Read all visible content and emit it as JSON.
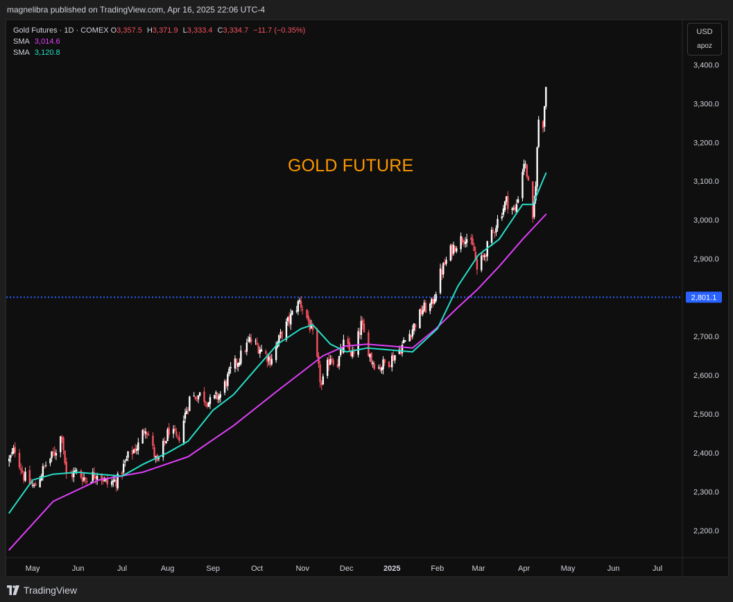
{
  "header": {
    "publisher_line": "magnelibra published on TradingView.com, Apr 16, 2025 22:06 UTC-4"
  },
  "legend": {
    "symbol": "Gold Futures · 1D · COMEX",
    "ohlc": [
      {
        "k": "O",
        "v": "3,357.5"
      },
      {
        "k": "H",
        "v": "3,371.9"
      },
      {
        "k": "L",
        "v": "3,333.4"
      },
      {
        "k": "C",
        "v": "3,334.7"
      }
    ],
    "change": "−11.7 (−0.35%)",
    "sma": [
      {
        "label": "SMA",
        "value": "3,014.6",
        "color": "#e040fb"
      },
      {
        "label": "SMA",
        "value": "3,120.8",
        "color": "#26e0c8"
      }
    ]
  },
  "currency": {
    "code": "USD",
    "unit": "apoz"
  },
  "annotation": "GOLD FUTURE",
  "brand": "TradingView",
  "colors": {
    "up": "#ffffff",
    "down": "#f7525f",
    "sma_long": "#e040fb",
    "sma_short": "#26e0c8",
    "hline": "#2962ff",
    "annotation": "#ff9800"
  },
  "chart_data": {
    "type": "candlestick",
    "y_ticks": [
      "2,200.0",
      "2,300.0",
      "2,400.0",
      "2,500.0",
      "2,600.0",
      "2,700.0",
      "2,800.0",
      "2,900.0",
      "3,000.0",
      "3,100.0",
      "3,200.0",
      "3,300.0",
      "3,400.0"
    ],
    "ylim": [
      2130,
      3515
    ],
    "x_ticks": [
      "May",
      "Jun",
      "Jul",
      "Aug",
      "Sep",
      "Oct",
      "Nov",
      "Dec",
      "2025",
      "Feb",
      "Mar",
      "Apr",
      "May",
      "Jun",
      "Jul"
    ],
    "horizontal_line": {
      "value": 2801.1,
      "label": "2,801.1"
    },
    "close_path": [
      [
        "2024-04-15",
        2380
      ],
      [
        "2024-04-19",
        2410
      ],
      [
        "2024-04-25",
        2340
      ],
      [
        "2024-05-02",
        2310
      ],
      [
        "2024-05-10",
        2370
      ],
      [
        "2024-05-16",
        2400
      ],
      [
        "2024-05-21",
        2450
      ],
      [
        "2024-05-24",
        2340
      ],
      [
        "2024-05-31",
        2350
      ],
      [
        "2024-06-07",
        2330
      ],
      [
        "2024-06-14",
        2350
      ],
      [
        "2024-06-21",
        2320
      ],
      [
        "2024-06-28",
        2330
      ],
      [
        "2024-07-05",
        2390
      ],
      [
        "2024-07-12",
        2420
      ],
      [
        "2024-07-17",
        2470
      ],
      [
        "2024-07-25",
        2370
      ],
      [
        "2024-08-02",
        2460
      ],
      [
        "2024-08-08",
        2430
      ],
      [
        "2024-08-16",
        2540
      ],
      [
        "2024-08-23",
        2550
      ],
      [
        "2024-08-30",
        2530
      ],
      [
        "2024-09-06",
        2550
      ],
      [
        "2024-09-13",
        2610
      ],
      [
        "2024-09-20",
        2650
      ],
      [
        "2024-09-26",
        2690
      ],
      [
        "2024-10-03",
        2670
      ],
      [
        "2024-10-10",
        2640
      ],
      [
        "2024-10-17",
        2700
      ],
      [
        "2024-10-24",
        2750
      ],
      [
        "2024-10-30",
        2790
      ],
      [
        "2024-11-05",
        2740
      ],
      [
        "2024-11-08",
        2700
      ],
      [
        "2024-11-14",
        2570
      ],
      [
        "2024-11-20",
        2650
      ],
      [
        "2024-11-25",
        2630
      ],
      [
        "2024-11-29",
        2680
      ],
      [
        "2024-12-06",
        2650
      ],
      [
        "2024-12-11",
        2730
      ],
      [
        "2024-12-18",
        2640
      ],
      [
        "2024-12-23",
        2620
      ],
      [
        "2024-12-31",
        2640
      ],
      [
        "2025-01-07",
        2670
      ],
      [
        "2025-01-15",
        2720
      ],
      [
        "2025-01-22",
        2770
      ],
      [
        "2025-01-28",
        2780
      ],
      [
        "2025-02-03",
        2860
      ],
      [
        "2025-02-10",
        2920
      ],
      [
        "2025-02-14",
        2940
      ],
      [
        "2025-02-20",
        2960
      ],
      [
        "2025-02-26",
        2920
      ],
      [
        "2025-02-28",
        2870
      ],
      [
        "2025-03-06",
        2920
      ],
      [
        "2025-03-13",
        2990
      ],
      [
        "2025-03-20",
        3050
      ],
      [
        "2025-03-26",
        3020
      ],
      [
        "2025-04-01",
        3150
      ],
      [
        "2025-04-03",
        3120
      ],
      [
        "2025-04-07",
        2990
      ],
      [
        "2025-04-09",
        3100
      ],
      [
        "2025-04-11",
        3260
      ],
      [
        "2025-04-14",
        3250
      ],
      [
        "2025-04-16",
        3345
      ]
    ],
    "series": [
      {
        "name": "SMA",
        "value_label": "3,014.6",
        "points": [
          [
            "2024-04-15",
            2150
          ],
          [
            "2024-05-15",
            2275
          ],
          [
            "2024-06-15",
            2330
          ],
          [
            "2024-07-15",
            2350
          ],
          [
            "2024-08-15",
            2390
          ],
          [
            "2024-09-15",
            2470
          ],
          [
            "2024-10-15",
            2560
          ],
          [
            "2024-11-15",
            2650
          ],
          [
            "2024-11-30",
            2675
          ],
          [
            "2024-12-15",
            2680
          ],
          [
            "2024-12-31",
            2675
          ],
          [
            "2025-01-15",
            2670
          ],
          [
            "2025-01-31",
            2720
          ],
          [
            "2025-02-15",
            2775
          ],
          [
            "2025-02-28",
            2820
          ],
          [
            "2025-03-15",
            2880
          ],
          [
            "2025-03-31",
            2950
          ],
          [
            "2025-04-16",
            3014.6
          ]
        ]
      },
      {
        "name": "SMA",
        "value_label": "3,120.8",
        "points": [
          [
            "2024-04-15",
            2245
          ],
          [
            "2024-05-01",
            2330
          ],
          [
            "2024-05-15",
            2345
          ],
          [
            "2024-06-01",
            2350
          ],
          [
            "2024-06-15",
            2345
          ],
          [
            "2024-07-01",
            2340
          ],
          [
            "2024-07-15",
            2370
          ],
          [
            "2024-08-01",
            2400
          ],
          [
            "2024-08-15",
            2430
          ],
          [
            "2024-09-01",
            2510
          ],
          [
            "2024-09-15",
            2550
          ],
          [
            "2024-10-01",
            2620
          ],
          [
            "2024-10-15",
            2680
          ],
          [
            "2024-10-31",
            2720
          ],
          [
            "2024-11-08",
            2730
          ],
          [
            "2024-11-20",
            2680
          ],
          [
            "2024-12-01",
            2660
          ],
          [
            "2024-12-15",
            2670
          ],
          [
            "2024-12-31",
            2665
          ],
          [
            "2025-01-15",
            2660
          ],
          [
            "2025-02-01",
            2720
          ],
          [
            "2025-02-15",
            2830
          ],
          [
            "2025-03-01",
            2910
          ],
          [
            "2025-03-15",
            2950
          ],
          [
            "2025-03-31",
            3040
          ],
          [
            "2025-04-07",
            3040
          ],
          [
            "2025-04-16",
            3120.8
          ]
        ]
      }
    ]
  }
}
